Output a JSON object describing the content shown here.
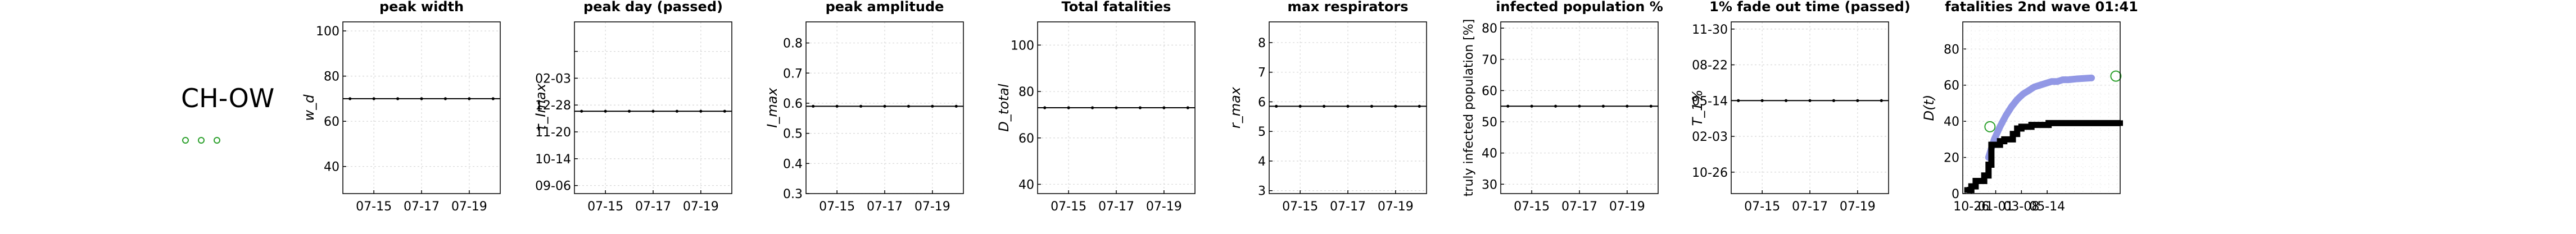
{
  "region_label": "CH-OW",
  "marker_colors": {
    "green": "#2ca02c",
    "black": "#000000",
    "blue": "#7f86e0",
    "grid": "#d8d8d8"
  },
  "x_ticks": [
    "07-15",
    "07-17",
    "07-19"
  ],
  "chart_data": [
    {
      "type": "line",
      "title": "peak width",
      "ylabel": "w_d",
      "ylim": [
        28,
        104
      ],
      "yticks": [
        40,
        60,
        80,
        100
      ],
      "ytick_labels": [
        "40",
        "60",
        "80",
        "100"
      ],
      "x": [
        0,
        1,
        2,
        3,
        4,
        5,
        6
      ],
      "series": [
        {
          "values": [
            70,
            70,
            70,
            70,
            70,
            70,
            70
          ]
        }
      ]
    },
    {
      "type": "line",
      "title": "peak day (passed)",
      "ylabel": "τ_Imax",
      "ylim": [
        0,
        6.4
      ],
      "yticks": [
        0.3,
        1.3,
        2.3,
        3.3,
        4.3,
        5.3
      ],
      "ytick_labels": [
        "09-06",
        "10-14",
        "11-20",
        "12-28",
        "02-03",
        ""
      ],
      "x": [
        0,
        1,
        2,
        3,
        4,
        5,
        6
      ],
      "series": [
        {
          "values": [
            3.07,
            3.07,
            3.07,
            3.07,
            3.07,
            3.07,
            3.07
          ]
        }
      ]
    },
    {
      "type": "line",
      "title": "peak amplitude",
      "ylabel": "I_max",
      "ylim": [
        0.3,
        0.87
      ],
      "yticks": [
        0.3,
        0.4,
        0.5,
        0.6,
        0.7,
        0.8
      ],
      "ytick_labels": [
        "0.3",
        "0.4",
        "0.5",
        "0.6",
        "0.7",
        "0.8"
      ],
      "x": [
        0,
        1,
        2,
        3,
        4,
        5,
        6
      ],
      "series": [
        {
          "values": [
            0.59,
            0.59,
            0.59,
            0.59,
            0.59,
            0.59,
            0.59
          ]
        }
      ]
    },
    {
      "type": "line",
      "title": "Total fatalities",
      "ylabel": "D_total",
      "ylim": [
        36,
        110
      ],
      "yticks": [
        40,
        60,
        80,
        100
      ],
      "ytick_labels": [
        "40",
        "60",
        "80",
        "100"
      ],
      "x": [
        0,
        1,
        2,
        3,
        4,
        5,
        6
      ],
      "series": [
        {
          "values": [
            73,
            73,
            73,
            73,
            73,
            73,
            73
          ]
        }
      ]
    },
    {
      "type": "line",
      "title": "max respirators",
      "ylabel": "r_max",
      "ylim": [
        2.9,
        8.7
      ],
      "yticks": [
        3,
        4,
        5,
        6,
        7,
        8
      ],
      "ytick_labels": [
        "3",
        "4",
        "5",
        "6",
        "7",
        "8"
      ],
      "x": [
        0,
        1,
        2,
        3,
        4,
        5,
        6
      ],
      "series": [
        {
          "values": [
            5.85,
            5.85,
            5.85,
            5.85,
            5.85,
            5.85,
            5.85
          ]
        }
      ]
    },
    {
      "type": "line",
      "title": "infected population %",
      "ylabel": "truly infected population [%]",
      "ylim": [
        27,
        82
      ],
      "yticks": [
        30,
        40,
        50,
        60,
        70,
        80
      ],
      "ytick_labels": [
        "30",
        "40",
        "50",
        "60",
        "70",
        "80"
      ],
      "x": [
        0,
        1,
        2,
        3,
        4,
        5,
        6
      ],
      "series": [
        {
          "values": [
            55,
            55,
            55,
            55,
            55,
            55,
            55
          ]
        }
      ]
    },
    {
      "type": "line",
      "title": "1% fade out time (passed)",
      "ylabel": "T_1%",
      "ylim": [
        -0.3,
        4.5
      ],
      "yticks": [
        0.3,
        1.3,
        2.3,
        3.3,
        4.3
      ],
      "ytick_labels": [
        "10-26",
        "02-03",
        "05-14",
        "08-22",
        "11-30"
      ],
      "x": [
        0,
        1,
        2,
        3,
        4,
        5,
        6
      ],
      "series": [
        {
          "values": [
            2.3,
            2.3,
            2.3,
            2.3,
            2.3,
            2.3,
            2.3
          ]
        }
      ]
    },
    {
      "type": "scatter",
      "title": "fatalities 2nd wave 01:41",
      "ylabel": "D(t)",
      "ylim": [
        0,
        95
      ],
      "yticks": [
        0,
        20,
        40,
        60,
        80
      ],
      "ytick_labels": [
        "0",
        "20",
        "40",
        "60",
        "80"
      ],
      "xlim": [
        0,
        11
      ],
      "xtick_labels": [
        "10-26",
        "01-01",
        "03-08",
        "05-14"
      ],
      "xticks": [
        0.6,
        2.3,
        4.1,
        5.9
      ],
      "series": [
        {
          "values_x": [
            0.3,
            0.6,
            0.9,
            1.2,
            1.5,
            1.8,
            2.0,
            2.3,
            2.6,
            2.9,
            3.2,
            3.5,
            3.8,
            4.1,
            4.4,
            4.8,
            5.3,
            6.0,
            7.0,
            8.0,
            9.0,
            10.0,
            11.0
          ],
          "values": [
            2,
            4,
            7,
            7,
            10,
            16,
            27,
            27,
            29,
            30,
            30,
            33,
            36,
            37,
            37,
            38,
            38,
            39,
            39,
            39,
            39,
            39,
            39
          ]
        },
        {
          "values_x": [
            1.8,
            2.2,
            2.6,
            3.0,
            3.4,
            3.8,
            4.2,
            4.6,
            5.0,
            5.4,
            5.8,
            6.2,
            6.6,
            7.0,
            7.4,
            8.0,
            9.0
          ],
          "values": [
            20,
            30,
            37,
            43,
            48,
            52,
            55,
            57,
            59,
            60,
            61,
            62,
            62,
            63,
            63,
            63.5,
            64
          ]
        },
        {
          "values_x": [
            1.9,
            10.7
          ],
          "values": [
            37,
            65
          ]
        }
      ]
    }
  ]
}
